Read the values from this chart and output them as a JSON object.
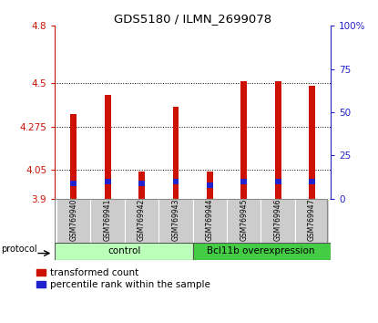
{
  "title": "GDS5180 / ILMN_2699078",
  "samples": [
    "GSM769940",
    "GSM769941",
    "GSM769942",
    "GSM769943",
    "GSM769944",
    "GSM769945",
    "GSM769946",
    "GSM769947"
  ],
  "bar_tops": [
    4.34,
    4.44,
    4.04,
    4.38,
    4.04,
    4.51,
    4.51,
    4.49
  ],
  "blue_bottoms": [
    3.965,
    3.975,
    3.965,
    3.975,
    3.955,
    3.975,
    3.975,
    3.975
  ],
  "blue_tops": [
    3.995,
    4.005,
    3.995,
    4.005,
    3.985,
    4.005,
    4.005,
    4.005
  ],
  "bar_bottom": 3.9,
  "ymin": 3.9,
  "ymax": 4.8,
  "yticks": [
    3.9,
    4.05,
    4.275,
    4.5,
    4.8
  ],
  "ytick_labels": [
    "3.9",
    "4.05",
    "4.275",
    "4.5",
    "4.8"
  ],
  "right_yticks": [
    0,
    25,
    50,
    75,
    100
  ],
  "right_ytick_labels": [
    "0",
    "25",
    "50",
    "75",
    "100%"
  ],
  "red_color": "#cc1100",
  "blue_color": "#2222cc",
  "control_color": "#bbffbb",
  "overexp_color": "#44cc44",
  "label_bg_color": "#cccccc",
  "protocol_label": "protocol",
  "legend_red": "transformed count",
  "legend_blue": "percentile rank within the sample",
  "bar_width": 0.18
}
